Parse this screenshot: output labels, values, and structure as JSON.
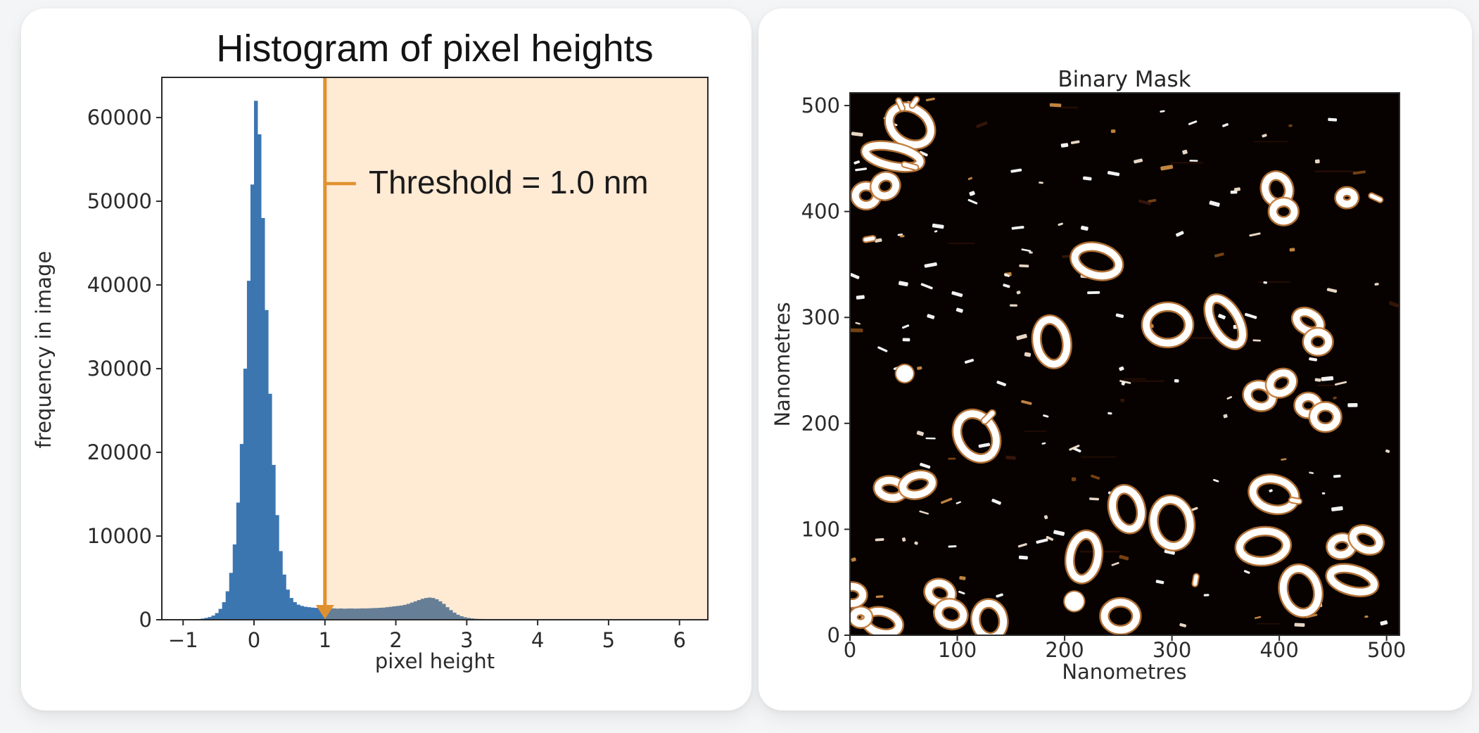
{
  "page": {
    "background": "#f4f5f6",
    "card_background": "#ffffff",
    "axis_text_color": "#2b2b2b",
    "spine_color": "#2b2b2b"
  },
  "chart_data": [
    {
      "type": "bar",
      "subtype": "histogram",
      "panel": "left",
      "title": "Histogram of pixel heights",
      "xlabel": "pixel height",
      "ylabel": "frequency in image",
      "xlim": [
        -1.3,
        6.4
      ],
      "ylim": [
        0,
        64800
      ],
      "x_ticks": [
        -1,
        0,
        1,
        2,
        3,
        4,
        5,
        6
      ],
      "y_ticks": [
        0,
        10000,
        20000,
        30000,
        40000,
        50000,
        60000
      ],
      "grid": false,
      "legend": false,
      "bar_color": "#3c76b1",
      "threshold": {
        "value": 1.0,
        "label": "Threshold = 1.0 nm",
        "line_color": "#e0912f",
        "shade_rgba": "rgba(255,158,60,0.22)"
      },
      "bins": {
        "start": -0.9,
        "width": 0.05,
        "heights": [
          30,
          60,
          90,
          140,
          220,
          330,
          500,
          800,
          1300,
          2100,
          3400,
          5600,
          9000,
          14000,
          21000,
          30000,
          40500,
          52000,
          62000,
          58000,
          48000,
          37000,
          27000,
          18500,
          12500,
          8200,
          5400,
          3600,
          2600,
          2100,
          1800,
          1650,
          1550,
          1500,
          1450,
          1420,
          1400,
          1380,
          1350,
          1340,
          1360,
          1330,
          1350,
          1320,
          1340,
          1350,
          1330,
          1340,
          1360,
          1350,
          1370,
          1390,
          1400,
          1430,
          1450,
          1500,
          1550,
          1600,
          1650,
          1700,
          1780,
          1900,
          2050,
          2200,
          2350,
          2500,
          2600,
          2650,
          2600,
          2450,
          2200,
          1900,
          1500,
          1150,
          850,
          600,
          420,
          300,
          220,
          160,
          120,
          100,
          90,
          80,
          70,
          60,
          60,
          50,
          50,
          45,
          45,
          40,
          40,
          40,
          35,
          35,
          30,
          35,
          40,
          45,
          50,
          40,
          30,
          20
        ]
      }
    },
    {
      "type": "heatmap",
      "subtype": "binary-mask-image",
      "panel": "right",
      "title": "Binary Mask",
      "xlabel": "Nanometres",
      "ylabel": "Nanometres",
      "xlim": [
        0,
        512
      ],
      "ylim": [
        0,
        512
      ],
      "x_ticks": [
        0,
        100,
        200,
        300,
        400,
        500
      ],
      "y_ticks": [
        0,
        100,
        200,
        300,
        400,
        500
      ],
      "background": "#070200",
      "foreground": "#ffffff",
      "fringe": "#c27a38",
      "ring_stroke_nm": 6.5,
      "shapes": [
        [
          "r",
          56,
          481,
          21,
          16,
          -35
        ],
        [
          "s",
          47,
          501,
          13,
          5,
          -65
        ],
        [
          "s",
          60,
          503,
          12,
          5,
          55
        ],
        [
          "r",
          40,
          452,
          26,
          9,
          -12
        ],
        [
          "s",
          56,
          443,
          16,
          5,
          -15
        ],
        [
          "r",
          15,
          415,
          10,
          9,
          0
        ],
        [
          "r",
          33,
          424,
          10,
          9,
          25
        ],
        [
          "s",
          18,
          374,
          12,
          5,
          10
        ],
        [
          "r",
          230,
          353,
          21,
          13,
          -15
        ],
        [
          "r",
          188,
          277,
          14,
          21,
          10
        ],
        [
          "d",
          51,
          247,
          8,
          0,
          0
        ],
        [
          "r",
          296,
          293,
          20,
          17,
          0
        ],
        [
          "r",
          350,
          296,
          12,
          24,
          30
        ],
        [
          "r",
          398,
          421,
          11,
          13,
          20
        ],
        [
          "r",
          404,
          400,
          10,
          9,
          0
        ],
        [
          "r",
          427,
          296,
          12,
          8,
          -30
        ],
        [
          "r",
          436,
          277,
          10,
          9,
          0
        ],
        [
          "s",
          490,
          413,
          14,
          5,
          -25
        ],
        [
          "r",
          463,
          413,
          7,
          6,
          0
        ],
        [
          "r",
          382,
          226,
          12,
          10,
          -20
        ],
        [
          "r",
          402,
          238,
          11,
          9,
          30
        ],
        [
          "r",
          427,
          217,
          9,
          8,
          0
        ],
        [
          "r",
          443,
          206,
          11,
          10,
          0
        ],
        [
          "r",
          395,
          133,
          20,
          14,
          -15
        ],
        [
          "s",
          415,
          127,
          12,
          5,
          -10
        ],
        [
          "r",
          385,
          84,
          22,
          14,
          5
        ],
        [
          "r",
          420,
          42,
          16,
          21,
          15
        ],
        [
          "r",
          458,
          84,
          10,
          8,
          10
        ],
        [
          "r",
          481,
          90,
          13,
          9,
          -25
        ],
        [
          "r",
          468,
          52,
          21,
          10,
          -15
        ],
        [
          "r",
          300,
          106,
          17,
          22,
          10
        ],
        [
          "r",
          258,
          119,
          13,
          19,
          15
        ],
        [
          "r",
          252,
          18,
          15,
          13,
          0
        ],
        [
          "s",
          322,
          52,
          12,
          5,
          80
        ],
        [
          "r",
          118,
          188,
          17,
          22,
          30
        ],
        [
          "s",
          129,
          206,
          16,
          6,
          45
        ],
        [
          "r",
          38,
          138,
          12,
          8,
          -10
        ],
        [
          "r",
          63,
          142,
          14,
          9,
          15
        ],
        [
          "r",
          30,
          12,
          16,
          10,
          -15
        ],
        [
          "r",
          10,
          17,
          7,
          6,
          0
        ],
        [
          "r",
          84,
          40,
          11,
          9,
          -20
        ],
        [
          "r",
          94,
          20,
          12,
          10,
          -20
        ],
        [
          "r",
          130,
          14,
          13,
          16,
          10
        ],
        [
          "r",
          218,
          74,
          13,
          21,
          -10
        ],
        [
          "d",
          209,
          32,
          9,
          0,
          0
        ],
        [
          "r",
          2,
          38,
          10,
          8,
          0
        ]
      ],
      "speckles": {
        "seed": 11,
        "count": 170,
        "colors": [
          "#ffffff",
          "#f3e2cf",
          "#c98a45",
          "#7a4414",
          "#38160a"
        ]
      },
      "streaks": {
        "count": 14,
        "color": "#2a0f05"
      }
    }
  ]
}
